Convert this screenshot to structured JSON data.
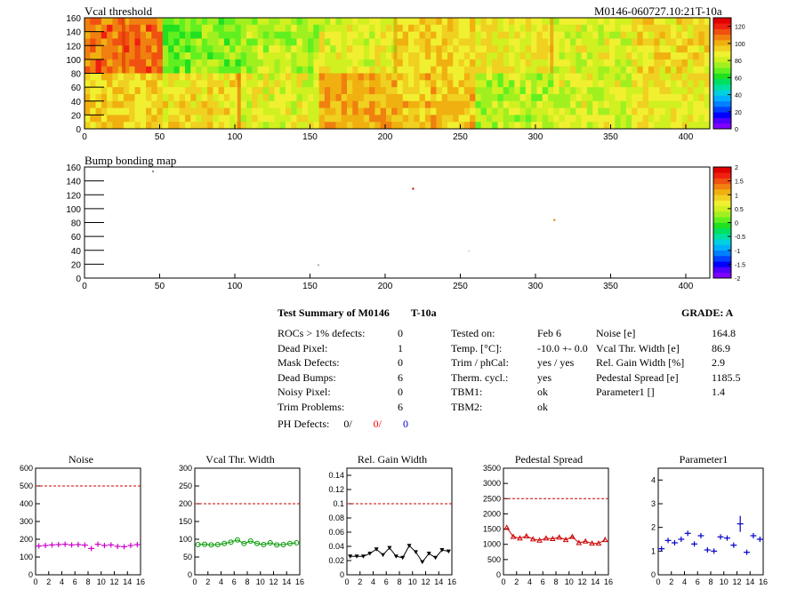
{
  "top_map": {
    "title": "Vcal threshold",
    "module_id": "M0146-060727.10:21T-10a",
    "x_ticks": [
      "0",
      "50",
      "100",
      "150",
      "200",
      "250",
      "300",
      "350",
      "400"
    ],
    "y_ticks": [
      "0",
      "20",
      "40",
      "60",
      "80",
      "100",
      "120",
      "140",
      "160"
    ],
    "palette_ticks": [
      "0",
      "20",
      "40",
      "60",
      "80",
      "100",
      "120"
    ]
  },
  "bump_map": {
    "title": "Bump bonding map",
    "x_ticks": [
      "0",
      "50",
      "100",
      "150",
      "200",
      "250",
      "300",
      "350",
      "400"
    ],
    "y_ticks": [
      "0",
      "20",
      "40",
      "60",
      "80",
      "100",
      "120",
      "140",
      "160"
    ],
    "palette_ticks": [
      "-2",
      "-1.5",
      "-1",
      "-0.5",
      "0",
      "0.5",
      "1",
      "1.5",
      "2"
    ]
  },
  "summary": {
    "title": "Test Summary of M0146",
    "temp_label": "T-10a",
    "grade": "GRADE:  A",
    "left": [
      {
        "label": "ROCs > 1% defects:",
        "value": "0"
      },
      {
        "label": "Dead Pixel:",
        "value": "1"
      },
      {
        "label": "Mask Defects:",
        "value": "0"
      },
      {
        "label": "Dead Bumps:",
        "value": "6"
      },
      {
        "label": "Noisy Pixel:",
        "value": "0"
      },
      {
        "label": "Trim Problems:",
        "value": "6"
      }
    ],
    "ph_label": "PH Defects:",
    "ph_values": [
      "0/",
      "0/",
      "0"
    ],
    "ph_colors": [
      "#000000",
      "#ff0000",
      "#0000cc"
    ],
    "middle": [
      {
        "label": "Tested on:",
        "value": "Feb 6"
      },
      {
        "label": "Temp. [°C]:",
        "value": "-10.0 +- 0.0"
      },
      {
        "label": "Trim / phCal:",
        "value": "yes / yes"
      },
      {
        "label": "Therm. cycl.:",
        "value": "yes"
      },
      {
        "label": "TBM1:",
        "value": "ok"
      },
      {
        "label": "TBM2:",
        "value": "ok"
      }
    ],
    "right": [
      {
        "label": "Noise [e]",
        "value": "164.8"
      },
      {
        "label": "Vcal Thr. Width [e]",
        "value": "86.9"
      },
      {
        "label": "Rel. Gain Width [%]",
        "value": "2.9"
      },
      {
        "label": "Pedestal Spread [e]",
        "value": "1185.5"
      },
      {
        "label": "Parameter1 []",
        "value": "1.4"
      }
    ]
  },
  "chart_data": [
    {
      "type": "scatter",
      "title": "Noise",
      "x": [
        0,
        1,
        2,
        3,
        4,
        5,
        6,
        7,
        8,
        9,
        10,
        11,
        12,
        13,
        14,
        15
      ],
      "values": [
        162,
        165,
        168,
        170,
        172,
        168,
        170,
        167,
        148,
        172,
        165,
        168,
        160,
        158,
        165,
        170
      ],
      "ylim": [
        0,
        600
      ],
      "yticks": [
        "0",
        "100",
        "200",
        "300",
        "400",
        "500",
        "600"
      ],
      "limit": 500,
      "color": "#cc00cc",
      "marker": "cross"
    },
    {
      "type": "line",
      "title": "Vcal Thr. Width",
      "x": [
        0,
        1,
        2,
        3,
        4,
        5,
        6,
        7,
        8,
        9,
        10,
        11,
        12,
        13,
        14,
        15
      ],
      "values": [
        85,
        86,
        84,
        85,
        88,
        92,
        98,
        88,
        95,
        88,
        85,
        90,
        84,
        85,
        88,
        90
      ],
      "ylim": [
        0,
        300
      ],
      "yticks": [
        "0",
        "50",
        "100",
        "150",
        "200",
        "250",
        "300"
      ],
      "limit": 200,
      "color": "#009900",
      "marker": "circle"
    },
    {
      "type": "line",
      "title": "Rel. Gain Width",
      "x": [
        0,
        1,
        2,
        3,
        4,
        5,
        6,
        7,
        8,
        9,
        10,
        11,
        12,
        13,
        14,
        15
      ],
      "values": [
        0.026,
        0.026,
        0.026,
        0.03,
        0.036,
        0.028,
        0.038,
        0.026,
        0.024,
        0.041,
        0.032,
        0.018,
        0.03,
        0.024,
        0.035,
        0.033
      ],
      "ylim": [
        0,
        0.15
      ],
      "yticks": [
        "0",
        "0.02",
        "0.04",
        "0.06",
        "0.08",
        "0.1",
        "0.12",
        "0.14"
      ],
      "limit": 0.1,
      "color": "#000000",
      "marker": "triangle-down"
    },
    {
      "type": "line",
      "title": "Pedestal Spread",
      "x": [
        0,
        1,
        2,
        3,
        4,
        5,
        6,
        7,
        8,
        9,
        10,
        11,
        12,
        13,
        14,
        15
      ],
      "values": [
        1550,
        1250,
        1200,
        1270,
        1170,
        1130,
        1200,
        1180,
        1230,
        1150,
        1250,
        1050,
        1100,
        1030,
        1030,
        1150
      ],
      "ylim": [
        0,
        3500
      ],
      "yticks": [
        "0",
        "500",
        "1000",
        "1500",
        "2000",
        "2500",
        "3000",
        "3500"
      ],
      "limit": 2500,
      "color": "#cc0000",
      "marker": "triangle-up"
    },
    {
      "type": "scatter",
      "title": "Parameter1",
      "x": [
        0,
        1,
        2,
        3,
        4,
        5,
        6,
        7,
        8,
        9,
        10,
        11,
        12,
        13,
        14,
        15
      ],
      "values": [
        1.1,
        1.45,
        1.35,
        1.5,
        1.75,
        1.3,
        1.65,
        1.05,
        1.0,
        1.6,
        1.55,
        1.25,
        2.15,
        0.95,
        1.65,
        1.5
      ],
      "ylim": [
        0,
        4.5
      ],
      "yticks": [
        "0",
        "1",
        "2",
        "3",
        "4"
      ],
      "limit": null,
      "color": "#0000cc",
      "marker": "cross"
    }
  ],
  "small_x_ticks": [
    "0",
    "2",
    "4",
    "6",
    "8",
    "10",
    "12",
    "14",
    "16"
  ]
}
